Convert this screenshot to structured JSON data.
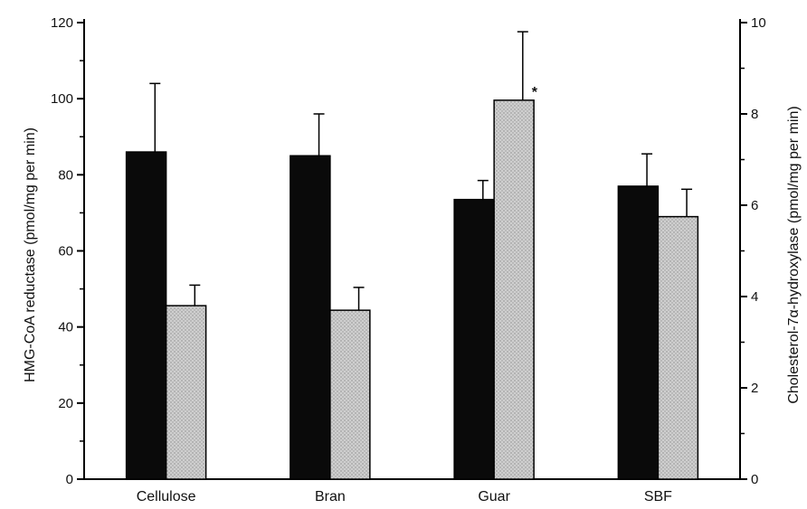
{
  "chart_data": {
    "type": "bar",
    "categories": [
      "Cellulose",
      "Bran",
      "Guar",
      "SBF"
    ],
    "series": [
      {
        "axis": "left",
        "color": "#0a0a0a",
        "values": [
          86,
          85,
          73.5,
          77
        ],
        "error": [
          18,
          11,
          5,
          8.5
        ]
      },
      {
        "axis": "right",
        "color": "#c4c4c4",
        "values": [
          3.8,
          3.7,
          8.3,
          5.75
        ],
        "error": [
          0.45,
          0.5,
          1.5,
          0.6
        ]
      }
    ],
    "ylabel": "HMG-CoA reductase (pmol/mg per min)",
    "y2label": "Cholesterol-7α-hydroxylase (pmol/mg per min)",
    "ylim": [
      0,
      120
    ],
    "y2lim": [
      0,
      10
    ],
    "yticks": [
      "0",
      "20",
      "40",
      "60",
      "80",
      "100",
      "120"
    ],
    "y2ticks": [
      "0",
      "2",
      "4",
      "6",
      "8",
      "10"
    ],
    "annotations": [
      {
        "text": "*",
        "category": "Guar",
        "series": 1
      }
    ],
    "grid": false,
    "legend": "none"
  }
}
